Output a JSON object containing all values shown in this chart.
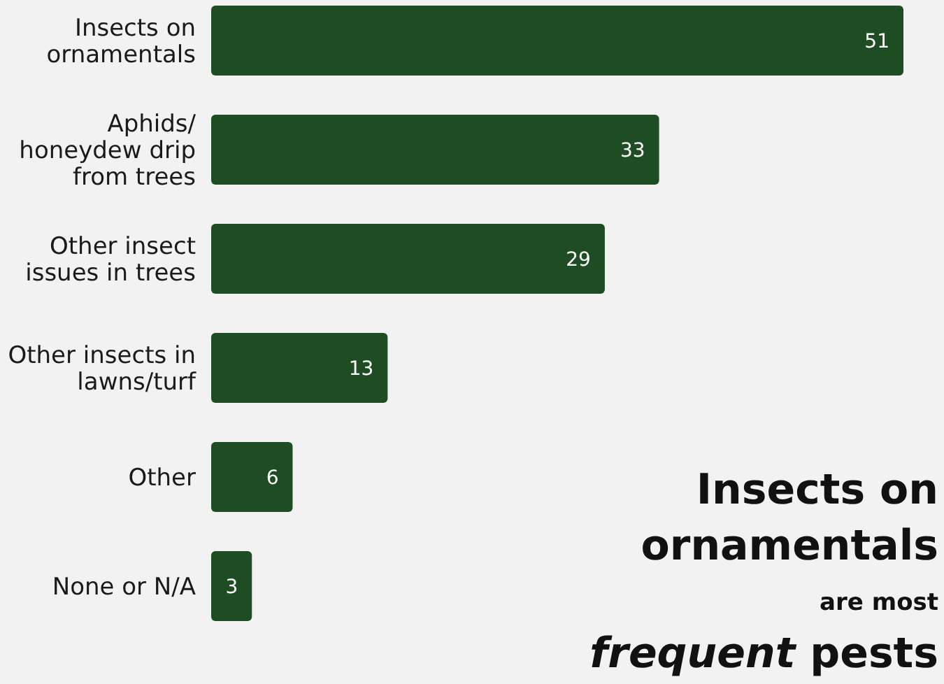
{
  "chart_data": {
    "type": "bar",
    "orientation": "horizontal",
    "title": "Insects on ornamentals",
    "subtitle": "are most frequent pests",
    "categories": [
      "Insects on\nornamentals",
      "Aphids/\nhoneydew drip\nfrom trees",
      "Other insect\nissues in trees",
      "Other insects in\nlawns/turf",
      "Other",
      "None or N/A"
    ],
    "values": [
      51,
      33,
      29,
      13,
      6,
      3
    ],
    "color": "#1f4d23",
    "data_labels": true
  }
}
